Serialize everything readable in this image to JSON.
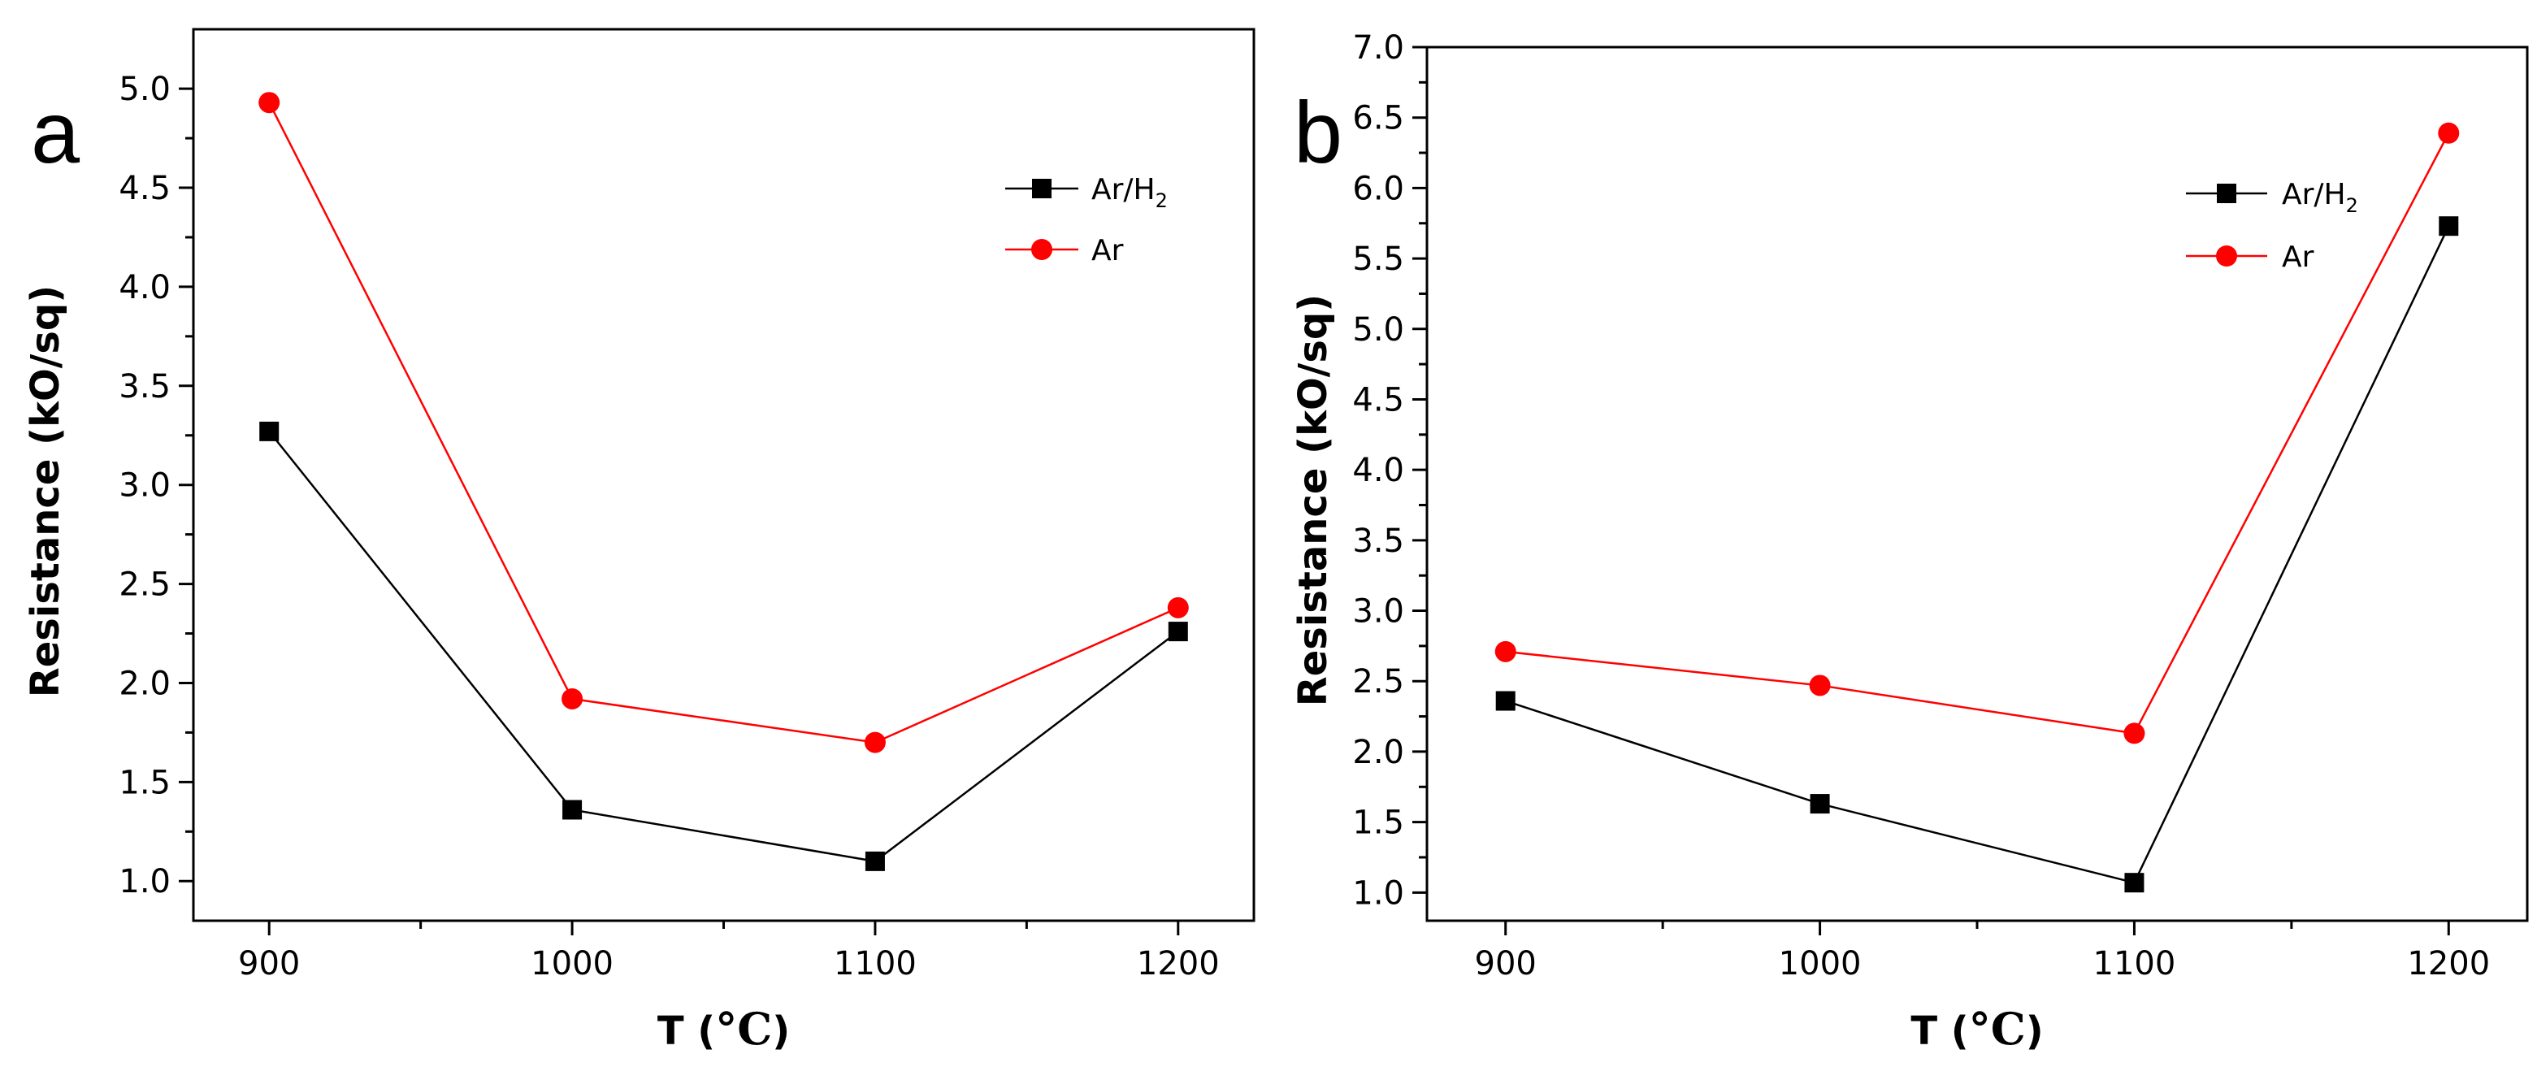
{
  "chart_data": [
    {
      "type": "line",
      "panel_label": "a",
      "xlabel_prefix": "T (",
      "xlabel_unit": "°C",
      "xlabel_suffix": ")",
      "ylabel": "Resistance (kO/sq)",
      "x": [
        900,
        1000,
        1100,
        1200
      ],
      "xlim": [
        875,
        1225
      ],
      "ylim": [
        0.8,
        5.3
      ],
      "xticks": [
        900,
        1000,
        1100,
        1200
      ],
      "yticks": [
        "1.0",
        "1.5",
        "2.0",
        "2.5",
        "3.0",
        "3.5",
        "4.0",
        "4.5",
        "5.0"
      ],
      "legend_position": "top-right",
      "series": [
        {
          "name": "Ar/H",
          "subscript": "2",
          "marker": "square",
          "color": "#000000",
          "values": [
            3.27,
            1.36,
            1.1,
            2.26
          ]
        },
        {
          "name": "Ar",
          "subscript": "",
          "marker": "circle",
          "color": "#ff0000",
          "values": [
            4.93,
            1.92,
            1.7,
            2.38
          ]
        }
      ]
    },
    {
      "type": "line",
      "panel_label": "b",
      "xlabel_prefix": "T (",
      "xlabel_unit": "°C",
      "xlabel_suffix": ")",
      "ylabel": "Resistance (kO/sq)",
      "x": [
        900,
        1000,
        1100,
        1200
      ],
      "xlim": [
        875,
        1225
      ],
      "ylim": [
        0.8,
        7.0
      ],
      "xticks": [
        900,
        1000,
        1100,
        1200
      ],
      "yticks": [
        "1.0",
        "1.5",
        "2.0",
        "2.5",
        "3.0",
        "3.5",
        "4.0",
        "4.5",
        "5.0",
        "5.5",
        "6.0",
        "6.5",
        "7.0"
      ],
      "legend_position": "top-right",
      "series": [
        {
          "name": "Ar/H",
          "subscript": "2",
          "marker": "square",
          "color": "#000000",
          "values": [
            2.36,
            1.63,
            1.07,
            5.73
          ]
        },
        {
          "name": "Ar",
          "subscript": "",
          "marker": "circle",
          "color": "#ff0000",
          "values": [
            2.71,
            2.47,
            2.13,
            6.39
          ]
        }
      ]
    }
  ]
}
